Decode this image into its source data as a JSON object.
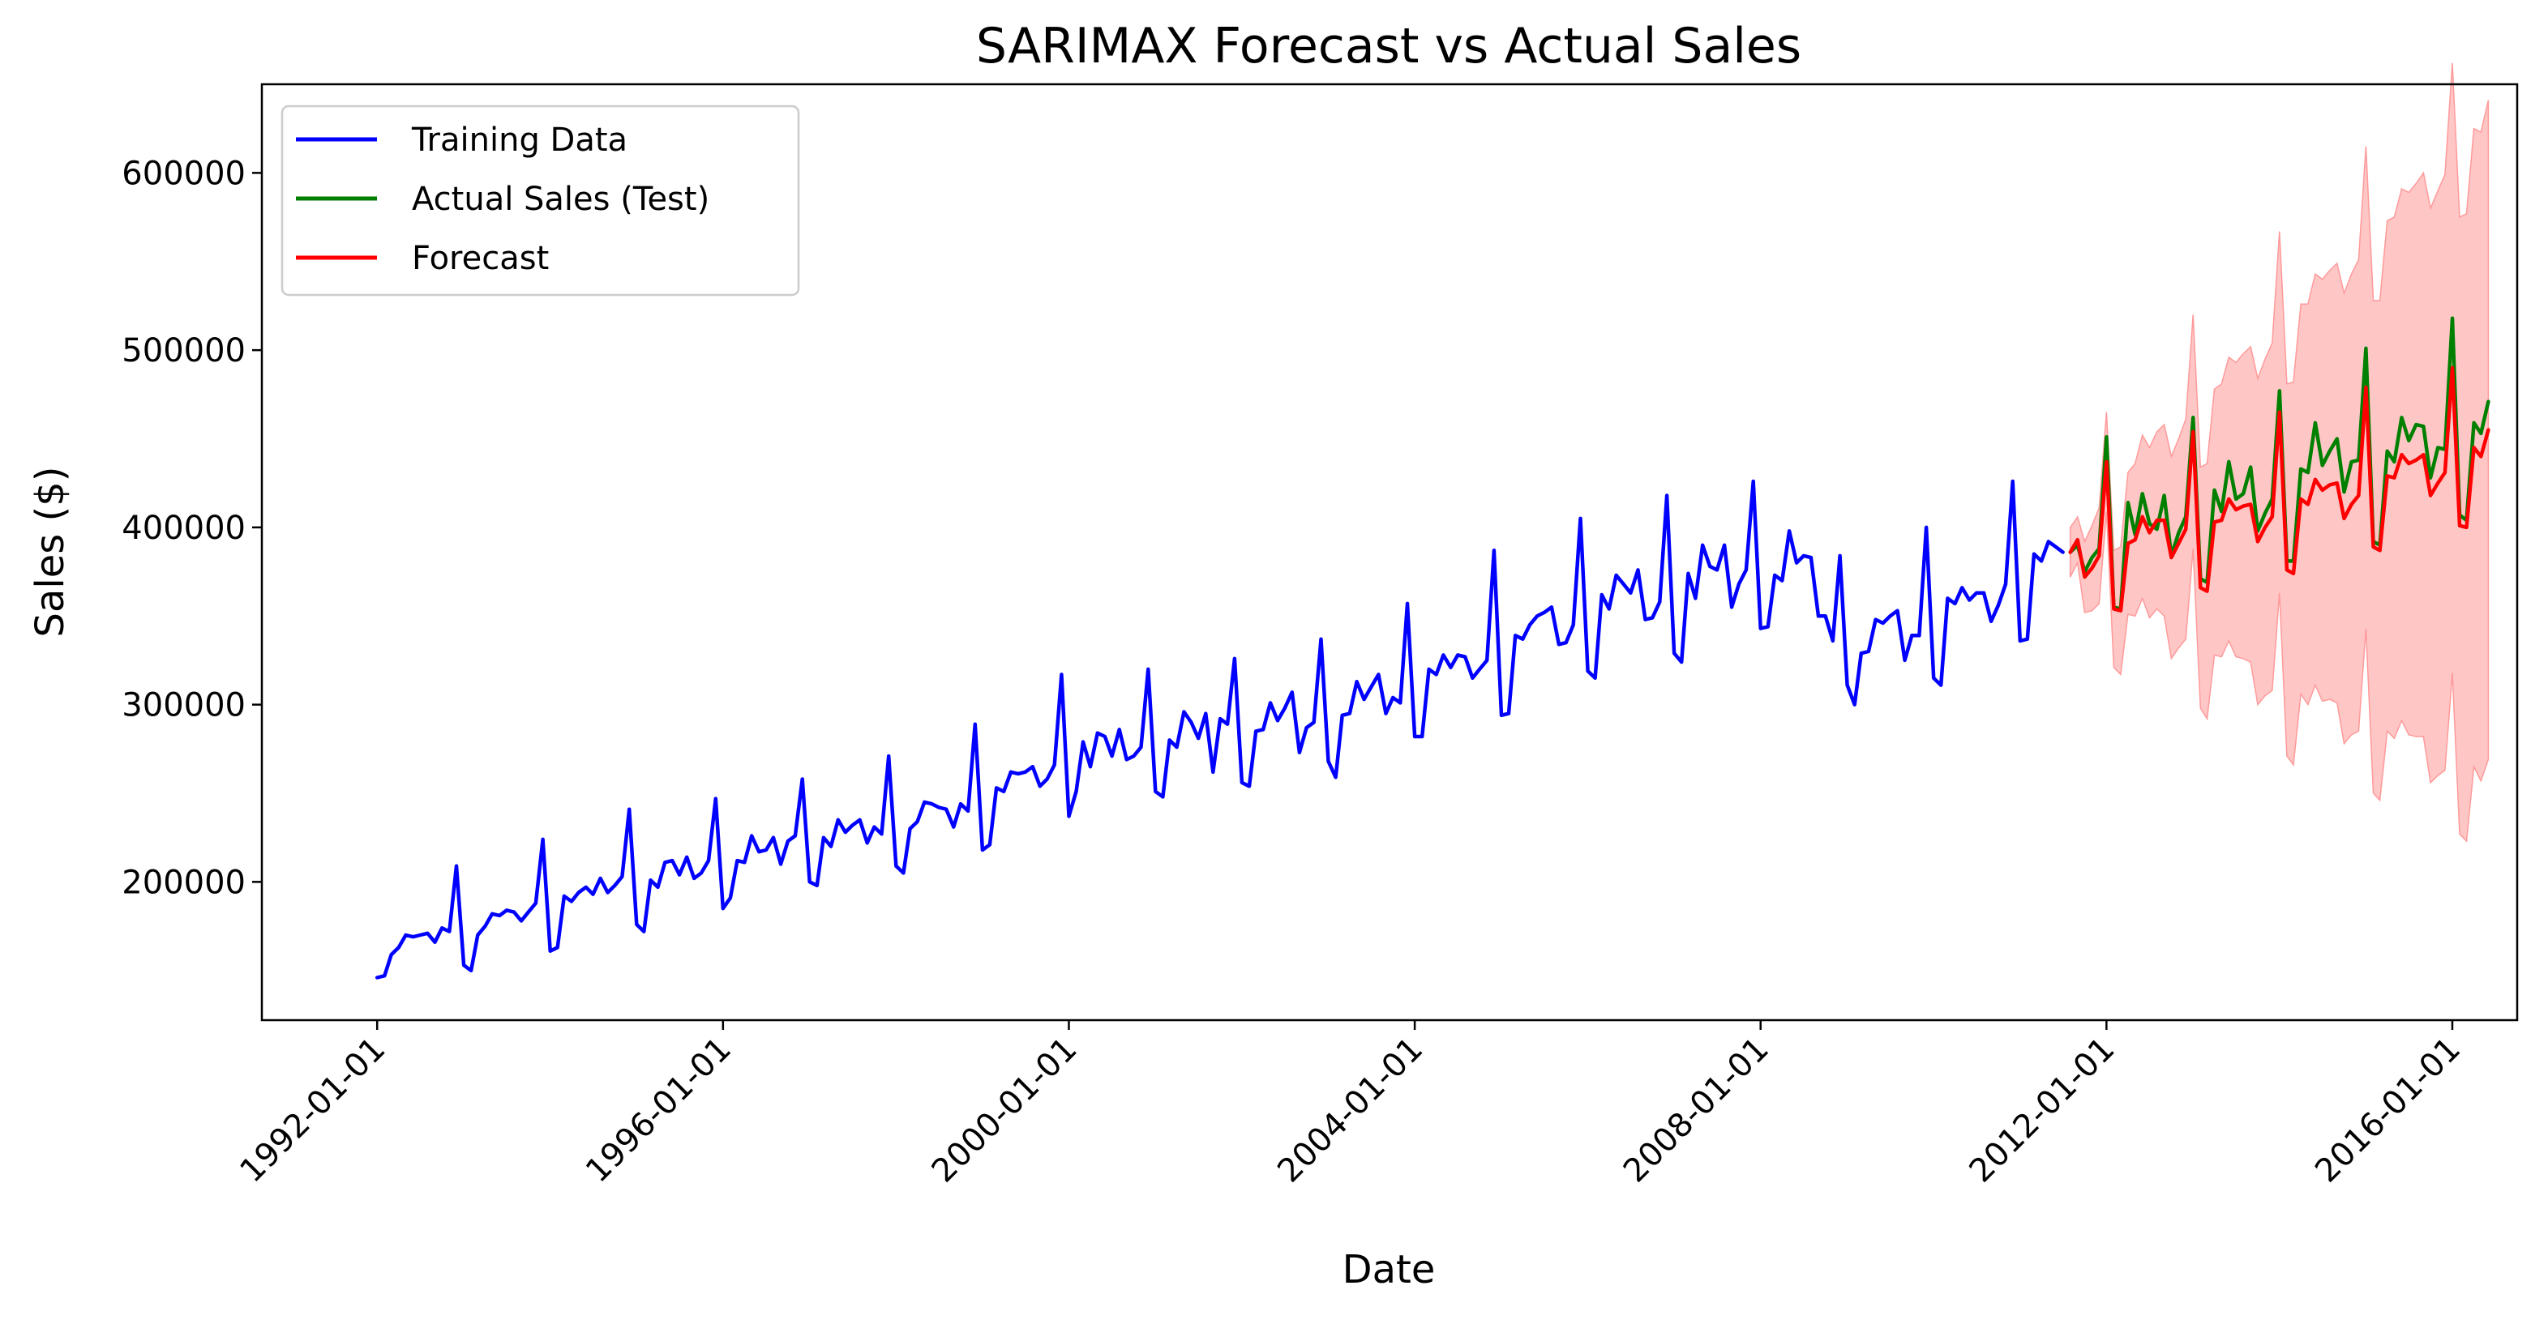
{
  "chart_data": {
    "type": "line",
    "title": "SARIMAX Forecast vs Actual Sales",
    "xlabel": "Date",
    "ylabel": "Sales ($)",
    "xlim": [
      "1990-09-01",
      "2016-10-01"
    ],
    "ylim": [
      122000,
      650000
    ],
    "x_ticks": [
      "1992-01-01",
      "1996-01-01",
      "2000-01-01",
      "2004-01-01",
      "2008-01-01",
      "2012-01-01",
      "2016-01-01"
    ],
    "y_ticks": [
      200000,
      300000,
      400000,
      500000,
      600000
    ],
    "grid": false,
    "legend": {
      "position": "top-left",
      "entries": [
        "Training Data",
        "Actual Sales (Test)",
        "Forecast"
      ]
    },
    "colors": {
      "training": "#0000ff",
      "actual": "#008000",
      "forecast": "#ff0000",
      "ci_fill": "#ffb3b3"
    },
    "series": [
      {
        "name": "Training Data",
        "x_start": "1992-01-01",
        "frequency": "monthly",
        "values": [
          146000,
          147000,
          159000,
          163000,
          170000,
          169000,
          170000,
          171000,
          166000,
          174000,
          172000,
          209000,
          153000,
          150000,
          170000,
          175000,
          182000,
          181000,
          184000,
          183000,
          178000,
          183000,
          188000,
          224000,
          161000,
          163000,
          192000,
          189000,
          194000,
          197000,
          193000,
          202000,
          194000,
          198000,
          203000,
          241000,
          176000,
          172000,
          201000,
          197000,
          211000,
          212000,
          204000,
          214000,
          202000,
          205000,
          212000,
          247000,
          185000,
          191000,
          212000,
          211000,
          226000,
          217000,
          218000,
          225000,
          210000,
          223000,
          226000,
          258000,
          200000,
          198000,
          225000,
          220000,
          235000,
          228000,
          232000,
          235000,
          222000,
          231000,
          227000,
          271000,
          209000,
          205000,
          230000,
          234000,
          245000,
          244000,
          242000,
          241000,
          231000,
          244000,
          240000,
          289000,
          218000,
          221000,
          253000,
          251000,
          262000,
          261000,
          262000,
          265000,
          254000,
          258000,
          266000,
          317000,
          237000,
          251000,
          279000,
          265000,
          284000,
          282000,
          271000,
          286000,
          269000,
          271000,
          276000,
          320000,
          251000,
          248000,
          280000,
          276000,
          296000,
          290000,
          281000,
          295000,
          262000,
          292000,
          289000,
          326000,
          256000,
          254000,
          285000,
          286000,
          301000,
          291000,
          298000,
          307000,
          273000,
          287000,
          290000,
          337000,
          268000,
          259000,
          294000,
          295000,
          313000,
          303000,
          310000,
          317000,
          295000,
          304000,
          301000,
          357000,
          282000,
          282000,
          320000,
          317000,
          328000,
          321000,
          328000,
          327000,
          315000,
          320000,
          325000,
          387000,
          294000,
          295000,
          339000,
          337000,
          345000,
          350000,
          352000,
          355000,
          334000,
          335000,
          345000,
          405000,
          319000,
          315000,
          362000,
          354000,
          373000,
          368000,
          363000,
          376000,
          348000,
          349000,
          358000,
          418000,
          329000,
          324000,
          374000,
          360000,
          390000,
          378000,
          376000,
          390000,
          355000,
          368000,
          376000,
          426000,
          343000,
          344000,
          373000,
          370000,
          398000,
          380000,
          384000,
          383000,
          350000,
          350000,
          336000,
          384000,
          311000,
          300000,
          329000,
          330000,
          348000,
          346000,
          350000,
          353000,
          325000,
          339000,
          339000,
          400000,
          315000,
          311000,
          360000,
          357000,
          366000,
          359000,
          363000,
          363000,
          347000,
          356000,
          368000,
          426000,
          336000,
          337000,
          385000,
          381000,
          392000,
          389000,
          386000
        ]
      },
      {
        "name": "Actual Sales (Test)",
        "x_start": "2011-08-01",
        "frequency": "monthly",
        "values": [
          386000,
          390000,
          375000,
          383000,
          388000,
          451000,
          355000,
          354000,
          414000,
          396000,
          419000,
          402000,
          399000,
          418000,
          384000,
          397000,
          406000,
          462000,
          371000,
          369000,
          421000,
          409000,
          437000,
          416000,
          419000,
          434000,
          398000,
          408000,
          416000,
          477000,
          381000,
          381000,
          433000,
          431000,
          459000,
          435000,
          443000,
          450000,
          420000,
          437000,
          438000,
          501000,
          392000,
          390000,
          443000,
          437000,
          462000,
          449000,
          458000,
          457000,
          428000,
          445000,
          444000,
          518000,
          407000,
          404000,
          459000,
          453000,
          471000
        ]
      },
      {
        "name": "Forecast",
        "x_start": "2011-08-01",
        "frequency": "monthly",
        "values": [
          386000,
          393000,
          372000,
          377000,
          384000,
          437000,
          354000,
          353000,
          391000,
          393000,
          406000,
          397000,
          404000,
          404000,
          383000,
          391000,
          399000,
          454000,
          366000,
          364000,
          403000,
          404000,
          416000,
          410000,
          412000,
          413000,
          392000,
          400000,
          406000,
          465000,
          376000,
          374000,
          416000,
          413000,
          427000,
          421000,
          424000,
          425000,
          405000,
          413000,
          418000,
          479000,
          389000,
          387000,
          429000,
          428000,
          441000,
          436000,
          438000,
          441000,
          418000,
          425000,
          431000,
          490000,
          401000,
          400000,
          445000,
          440000,
          455000
        ]
      }
    ],
    "confidence_interval": {
      "x_start": "2011-08-01",
      "frequency": "monthly",
      "upper": [
        400000,
        406000,
        392000,
        401000,
        411000,
        465000,
        387000,
        389000,
        431000,
        436000,
        452000,
        445000,
        454000,
        458000,
        440000,
        450000,
        461000,
        520000,
        434000,
        436000,
        478000,
        481000,
        496000,
        493000,
        498000,
        502000,
        484000,
        495000,
        504000,
        567000,
        481000,
        482000,
        526000,
        526000,
        543000,
        540000,
        545000,
        549000,
        532000,
        543000,
        551000,
        615000,
        528000,
        528000,
        573000,
        575000,
        591000,
        589000,
        594000,
        600000,
        580000,
        590000,
        599000,
        662000,
        575000,
        577000,
        625000,
        623000,
        641000
      ],
      "lower": [
        372000,
        380000,
        352000,
        353000,
        357000,
        409000,
        321000,
        317000,
        351000,
        350000,
        360000,
        349000,
        354000,
        350000,
        326000,
        332000,
        337000,
        388000,
        298000,
        292000,
        328000,
        327000,
        336000,
        327000,
        326000,
        324000,
        300000,
        305000,
        308000,
        363000,
        271000,
        266000,
        306000,
        300000,
        311000,
        302000,
        303000,
        301000,
        278000,
        283000,
        285000,
        343000,
        250000,
        246000,
        285000,
        281000,
        291000,
        283000,
        282000,
        282000,
        256000,
        260000,
        263000,
        318000,
        227000,
        223000,
        265000,
        257000,
        269000
      ]
    }
  }
}
